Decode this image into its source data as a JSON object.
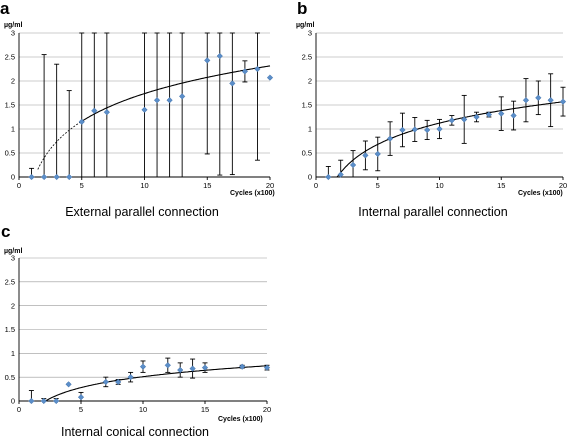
{
  "chart_data": [
    {
      "panel": "a",
      "type": "scatter",
      "unit_label": "µg/ml",
      "xlabel": "Cycles (x100)",
      "caption": "External parallel connection",
      "xlim": [
        0,
        20
      ],
      "ylim": [
        0,
        3
      ],
      "xticks": [
        0,
        5,
        10,
        15,
        20
      ],
      "yticks": [
        0,
        0.5,
        1,
        1.5,
        2,
        2.5,
        3
      ],
      "grid": true,
      "points": [
        {
          "x": 1,
          "y": 0,
          "err": 0.18
        },
        {
          "x": 2,
          "y": 0,
          "err": 2.55
        },
        {
          "x": 3,
          "y": 0,
          "err": 2.35
        },
        {
          "x": 4,
          "y": 0,
          "err": 1.8
        },
        {
          "x": 5,
          "y": 1.15,
          "err": 2.6
        },
        {
          "x": 6,
          "y": 1.38,
          "err": 2.5
        },
        {
          "x": 7,
          "y": 1.35,
          "err": 2.5
        },
        {
          "x": 10,
          "y": 1.4,
          "err": 2.4
        },
        {
          "x": 11,
          "y": 1.6,
          "err": 2.4
        },
        {
          "x": 12,
          "y": 1.6,
          "err": 2.4
        },
        {
          "x": 13,
          "y": 1.68,
          "err": 2.4
        },
        {
          "x": 15,
          "y": 2.43,
          "err": 1.95
        },
        {
          "x": 16,
          "y": 2.52,
          "err": 2.48
        },
        {
          "x": 17,
          "y": 1.95,
          "err": 1.9
        },
        {
          "x": 18,
          "y": 2.2,
          "err": 0.22
        },
        {
          "x": 19,
          "y": 2.25,
          "err": 1.9
        },
        {
          "x": 20,
          "y": 2.07,
          "err": 0.0
        }
      ],
      "trendline": {
        "a": 0.833,
        "b": -0.18,
        "x0": 1.5,
        "dashed_until": 5
      }
    },
    {
      "panel": "b",
      "type": "scatter",
      "unit_label": "µg/ml",
      "xlabel": "Cycles (x100)",
      "caption": "Internal parallel connection",
      "xlim": [
        0,
        20
      ],
      "ylim": [
        0,
        3
      ],
      "xticks": [
        0,
        5,
        10,
        15,
        20
      ],
      "yticks": [
        0,
        0.5,
        1,
        1.5,
        2,
        2.5,
        3
      ],
      "grid": true,
      "points": [
        {
          "x": 1,
          "y": 0,
          "err": 0.22
        },
        {
          "x": 2,
          "y": 0.05,
          "err": 0.3
        },
        {
          "x": 3,
          "y": 0.25,
          "err": 0.3
        },
        {
          "x": 4,
          "y": 0.45,
          "err": 0.3
        },
        {
          "x": 5,
          "y": 0.48,
          "err": 0.35
        },
        {
          "x": 6,
          "y": 0.8,
          "err": 0.35
        },
        {
          "x": 7,
          "y": 0.98,
          "err": 0.35
        },
        {
          "x": 8,
          "y": 0.99,
          "err": 0.25
        },
        {
          "x": 9,
          "y": 0.98,
          "err": 0.2
        },
        {
          "x": 10,
          "y": 1.0,
          "err": 0.2
        },
        {
          "x": 11,
          "y": 1.18,
          "err": 0.1
        },
        {
          "x": 12,
          "y": 1.2,
          "err": 0.5
        },
        {
          "x": 13,
          "y": 1.25,
          "err": 0.1
        },
        {
          "x": 14,
          "y": 1.3,
          "err": 0.05
        },
        {
          "x": 15,
          "y": 1.32,
          "err": 0.35
        },
        {
          "x": 16,
          "y": 1.28,
          "err": 0.3
        },
        {
          "x": 17,
          "y": 1.6,
          "err": 0.45
        },
        {
          "x": 18,
          "y": 1.65,
          "err": 0.35
        },
        {
          "x": 19,
          "y": 1.6,
          "err": 0.55
        },
        {
          "x": 20,
          "y": 1.57,
          "err": 0.3
        }
      ],
      "trendline": {
        "a": 0.64,
        "b": -0.35,
        "x0": 1.7,
        "dashed_until": 1.7
      }
    },
    {
      "panel": "c",
      "type": "scatter",
      "unit_label": "µg/ml",
      "xlabel": "Cycles (x100)",
      "caption": "Internal conical connection",
      "xlim": [
        0,
        20
      ],
      "ylim": [
        0,
        3
      ],
      "xticks": [
        0,
        5,
        10,
        15,
        20
      ],
      "yticks": [
        0,
        0.5,
        1,
        1.5,
        2,
        2.5,
        3
      ],
      "grid": true,
      "points": [
        {
          "x": 1,
          "y": 0,
          "err": 0.22
        },
        {
          "x": 2,
          "y": 0,
          "err": 0.05
        },
        {
          "x": 3,
          "y": 0,
          "err": 0.05
        },
        {
          "x": 4,
          "y": 0.35,
          "err": 0.0
        },
        {
          "x": 5,
          "y": 0.08,
          "err": 0.1
        },
        {
          "x": 7,
          "y": 0.4,
          "err": 0.1
        },
        {
          "x": 8,
          "y": 0.4,
          "err": 0.05
        },
        {
          "x": 9,
          "y": 0.5,
          "err": 0.1
        },
        {
          "x": 10,
          "y": 0.72,
          "err": 0.12
        },
        {
          "x": 12,
          "y": 0.75,
          "err": 0.15
        },
        {
          "x": 13,
          "y": 0.65,
          "err": 0.15
        },
        {
          "x": 14,
          "y": 0.68,
          "err": 0.2
        },
        {
          "x": 15,
          "y": 0.7,
          "err": 0.1
        },
        {
          "x": 18,
          "y": 0.72,
          "err": 0.03
        },
        {
          "x": 20,
          "y": 0.7,
          "err": 0.05
        }
      ],
      "trendline": {
        "a": 0.33,
        "b": -0.25,
        "x0": 1.7,
        "dashed_until": 1.7
      }
    }
  ],
  "colors": {
    "marker": "#5b8ec9",
    "marker_edge": "#3f6fa8",
    "grid": "#9a9a9a",
    "axis": "#000000"
  }
}
